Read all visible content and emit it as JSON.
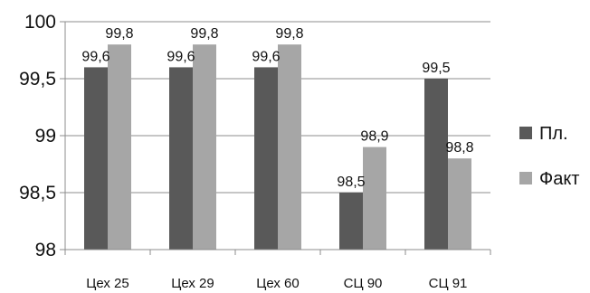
{
  "chart_data": {
    "type": "bar",
    "categories": [
      "Цех 25",
      "Цех 29",
      "Цех 60",
      "СЦ 90",
      "СЦ 91"
    ],
    "series": [
      {
        "name": "Пл.",
        "values": [
          99.6,
          99.6,
          99.6,
          98.5,
          99.5
        ],
        "labels": [
          "99,6",
          "99,6",
          "99,6",
          "98,5",
          "99,5"
        ],
        "color": "#595959"
      },
      {
        "name": "Факт",
        "values": [
          99.8,
          99.8,
          99.8,
          98.9,
          98.8
        ],
        "labels": [
          "99,8",
          "99,8",
          "99,8",
          "98,9",
          "98,8"
        ],
        "color": "#a6a6a6"
      }
    ],
    "ylim": [
      98,
      100
    ],
    "yticks": [
      98,
      98.5,
      99,
      99.5,
      100
    ],
    "ytick_labels": [
      "98",
      "98,5",
      "99",
      "99,5",
      "100"
    ],
    "grid": true,
    "legend_position": "right"
  }
}
